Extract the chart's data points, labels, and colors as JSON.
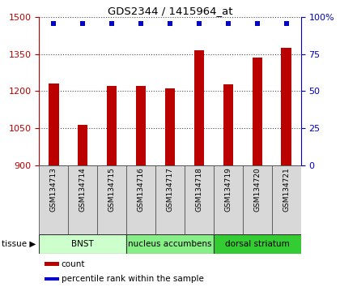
{
  "title": "GDS2344 / 1415964_at",
  "samples": [
    "GSM134713",
    "GSM134714",
    "GSM134715",
    "GSM134716",
    "GSM134717",
    "GSM134718",
    "GSM134719",
    "GSM134720",
    "GSM134721"
  ],
  "counts": [
    1230,
    1063,
    1220,
    1222,
    1210,
    1365,
    1228,
    1335,
    1375
  ],
  "percentiles": [
    100,
    100,
    100,
    100,
    100,
    100,
    100,
    100,
    100
  ],
  "ylim_left": [
    900,
    1500
  ],
  "ylim_right": [
    0,
    100
  ],
  "yticks_left": [
    900,
    1050,
    1200,
    1350,
    1500
  ],
  "yticks_right": [
    0,
    25,
    50,
    75,
    100
  ],
  "bar_color": "#bb0000",
  "dot_color": "#0000cc",
  "tissue_groups": [
    {
      "label": "BNST",
      "start": 0,
      "end": 3,
      "color": "#ccffcc"
    },
    {
      "label": "nucleus accumbens",
      "start": 3,
      "end": 6,
      "color": "#88ee88"
    },
    {
      "label": "dorsal striatum",
      "start": 6,
      "end": 9,
      "color": "#33cc33"
    }
  ],
  "tissue_label": "tissue",
  "legend_count": "count",
  "legend_percentile": "percentile rank within the sample",
  "bar_width": 0.35,
  "dot_size": 18,
  "dot_marker": "s",
  "grid_linestyle": "dotted",
  "grid_color": "#000000"
}
